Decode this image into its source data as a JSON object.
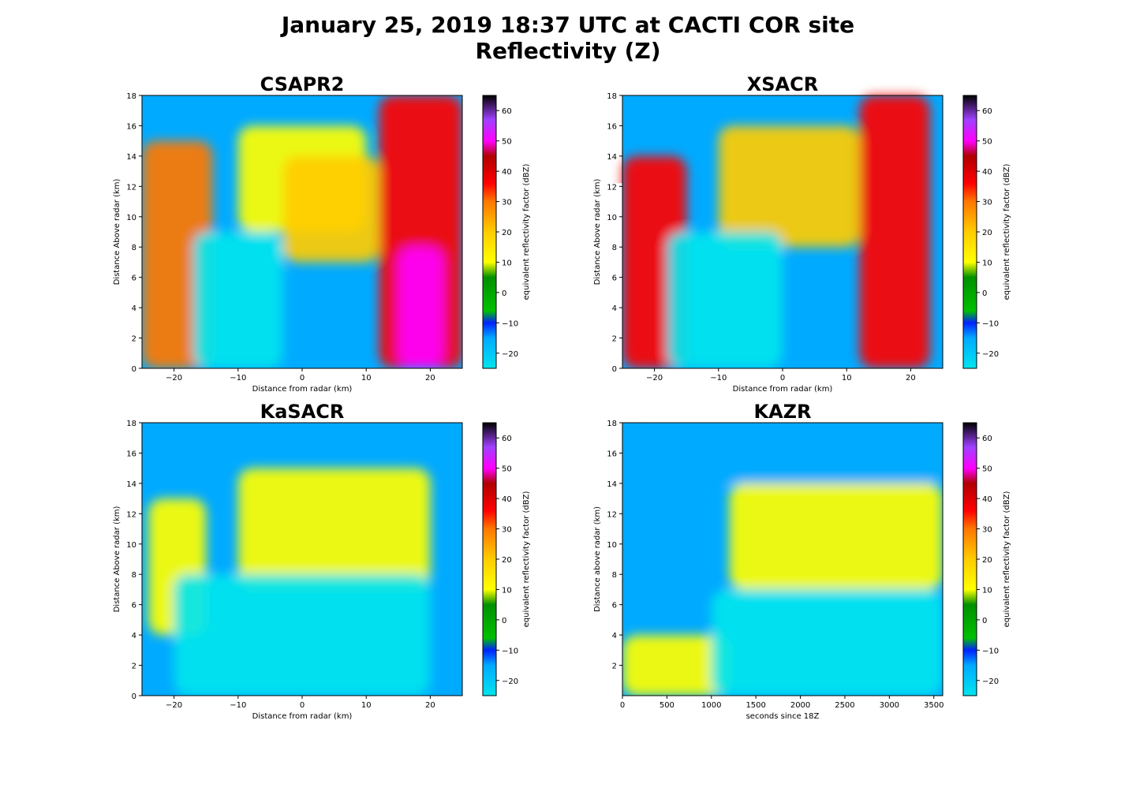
{
  "figure": {
    "title_line1": "January 25, 2019 18:37 UTC at CACTI COR site",
    "title_line2": "Reflectivity (Z)"
  },
  "colorbar": {
    "label": "equivalent reflectivity factor (dBZ)",
    "range": [
      -25,
      65
    ],
    "ticks": [
      -20,
      -10,
      0,
      10,
      20,
      30,
      40,
      50,
      60
    ],
    "colormap": [
      {
        "v": -25,
        "color": "#00e5ee"
      },
      {
        "v": -15,
        "color": "#00aaff"
      },
      {
        "v": -10,
        "color": "#0022ff"
      },
      {
        "v": -6,
        "color": "#00c000"
      },
      {
        "v": 5,
        "color": "#009000"
      },
      {
        "v": 10,
        "color": "#ffff00"
      },
      {
        "v": 20,
        "color": "#ffcc00"
      },
      {
        "v": 30,
        "color": "#ff7700"
      },
      {
        "v": 36,
        "color": "#ff0000"
      },
      {
        "v": 45,
        "color": "#b00000"
      },
      {
        "v": 50,
        "color": "#ff00ff"
      },
      {
        "v": 57,
        "color": "#a040ff"
      },
      {
        "v": 65,
        "color": "#000000"
      }
    ]
  },
  "chart_data": [
    {
      "type": "heatmap",
      "title": "CSAPR2",
      "xlabel": "Distance from radar (km)",
      "ylabel": "Distance Above radar  (km)",
      "xlim": [
        -25,
        25
      ],
      "ylim": [
        0,
        18
      ],
      "xticks": [
        -20,
        -10,
        0,
        10,
        20
      ],
      "xtick_labels": [
        "−20",
        "−10",
        "0",
        "10",
        "20"
      ],
      "yticks": [
        0,
        2,
        4,
        6,
        8,
        10,
        12,
        14,
        16,
        18
      ],
      "zlabel": "equivalent reflectivity factor (dBZ)",
      "cone_half_angle_deg": null,
      "features": [
        {
          "x": [
            -25,
            -14
          ],
          "y": [
            0,
            15
          ],
          "dbz": 35
        },
        {
          "x": [
            -10,
            10
          ],
          "y": [
            9,
            16
          ],
          "dbz": 12
        },
        {
          "x": [
            -3,
            12
          ],
          "y": [
            7,
            14
          ],
          "dbz": 30
        },
        {
          "x": [
            12,
            25
          ],
          "y": [
            0,
            18
          ],
          "dbz": 42
        },
        {
          "x": [
            15,
            22
          ],
          "y": [
            0,
            8
          ],
          "dbz": 52
        },
        {
          "x": [
            -17,
            -3
          ],
          "y": [
            0,
            9
          ],
          "dbz": -15
        }
      ]
    },
    {
      "type": "heatmap",
      "title": "XSACR",
      "xlabel": "Distance from radar (km)",
      "ylabel": "Distance Above radar  (km)",
      "xlim": [
        -25,
        25
      ],
      "ylim": [
        0,
        18
      ],
      "xticks": [
        -20,
        -10,
        0,
        10,
        20
      ],
      "xtick_labels": [
        "−20",
        "−10",
        "0",
        "10",
        "20"
      ],
      "yticks": [
        0,
        2,
        4,
        6,
        8,
        10,
        12,
        14,
        16,
        18
      ],
      "zlabel": "equivalent reflectivity factor (dBZ)",
      "cone_half_angle_deg": 55,
      "features": [
        {
          "x": [
            -25,
            -15
          ],
          "y": [
            0,
            14
          ],
          "dbz": 38
        },
        {
          "x": [
            -10,
            12
          ],
          "y": [
            8,
            16
          ],
          "dbz": 22
        },
        {
          "x": [
            12,
            23
          ],
          "y": [
            0,
            18
          ],
          "dbz": 40
        },
        {
          "x": [
            -18,
            0
          ],
          "y": [
            0,
            9
          ],
          "dbz": -18
        }
      ]
    },
    {
      "type": "heatmap",
      "title": "KaSACR",
      "xlabel": "Distance from radar (km)",
      "ylabel": "Distance Above radar  (km)",
      "xlim": [
        -25,
        25
      ],
      "ylim": [
        0,
        18
      ],
      "xticks": [
        -20,
        -10,
        0,
        10,
        20
      ],
      "xtick_labels": [
        "−20",
        "−10",
        "0",
        "10",
        "20"
      ],
      "yticks": [
        0,
        2,
        4,
        6,
        8,
        10,
        12,
        14,
        16,
        18
      ],
      "zlabel": "equivalent reflectivity factor (dBZ)",
      "cone_half_angle_deg": 55,
      "features": [
        {
          "x": [
            -24,
            -15
          ],
          "y": [
            4,
            13
          ],
          "dbz": 20
        },
        {
          "x": [
            -10,
            20
          ],
          "y": [
            7,
            15
          ],
          "dbz": 18
        },
        {
          "x": [
            -20,
            20
          ],
          "y": [
            0,
            8
          ],
          "dbz": -20
        }
      ]
    },
    {
      "type": "heatmap",
      "title": "KAZR",
      "xlabel": "seconds since 18Z",
      "ylabel": "Distance above radar (km)",
      "xlim": [
        0,
        3600
      ],
      "ylim": [
        0,
        18
      ],
      "xticks": [
        0,
        500,
        1000,
        1500,
        2000,
        2500,
        3000,
        3500
      ],
      "xtick_labels": [
        "0",
        "500",
        "1000",
        "1500",
        "2000",
        "2500",
        "3000",
        "3500"
      ],
      "yticks": [
        2,
        4,
        6,
        8,
        10,
        12,
        14,
        16,
        18
      ],
      "zlabel": "equivalent reflectivity factor (dBZ)",
      "cone_half_angle_deg": null,
      "features": [
        {
          "x": [
            1200,
            3600
          ],
          "y": [
            7,
            14
          ],
          "dbz": 18
        },
        {
          "x": [
            0,
            1200
          ],
          "y": [
            0,
            4
          ],
          "dbz": 18
        },
        {
          "x": [
            0,
            3600
          ],
          "y": [
            14,
            18
          ],
          "dbz": -12
        },
        {
          "x": [
            1000,
            3600
          ],
          "y": [
            0,
            7
          ],
          "dbz": -22
        }
      ]
    }
  ]
}
